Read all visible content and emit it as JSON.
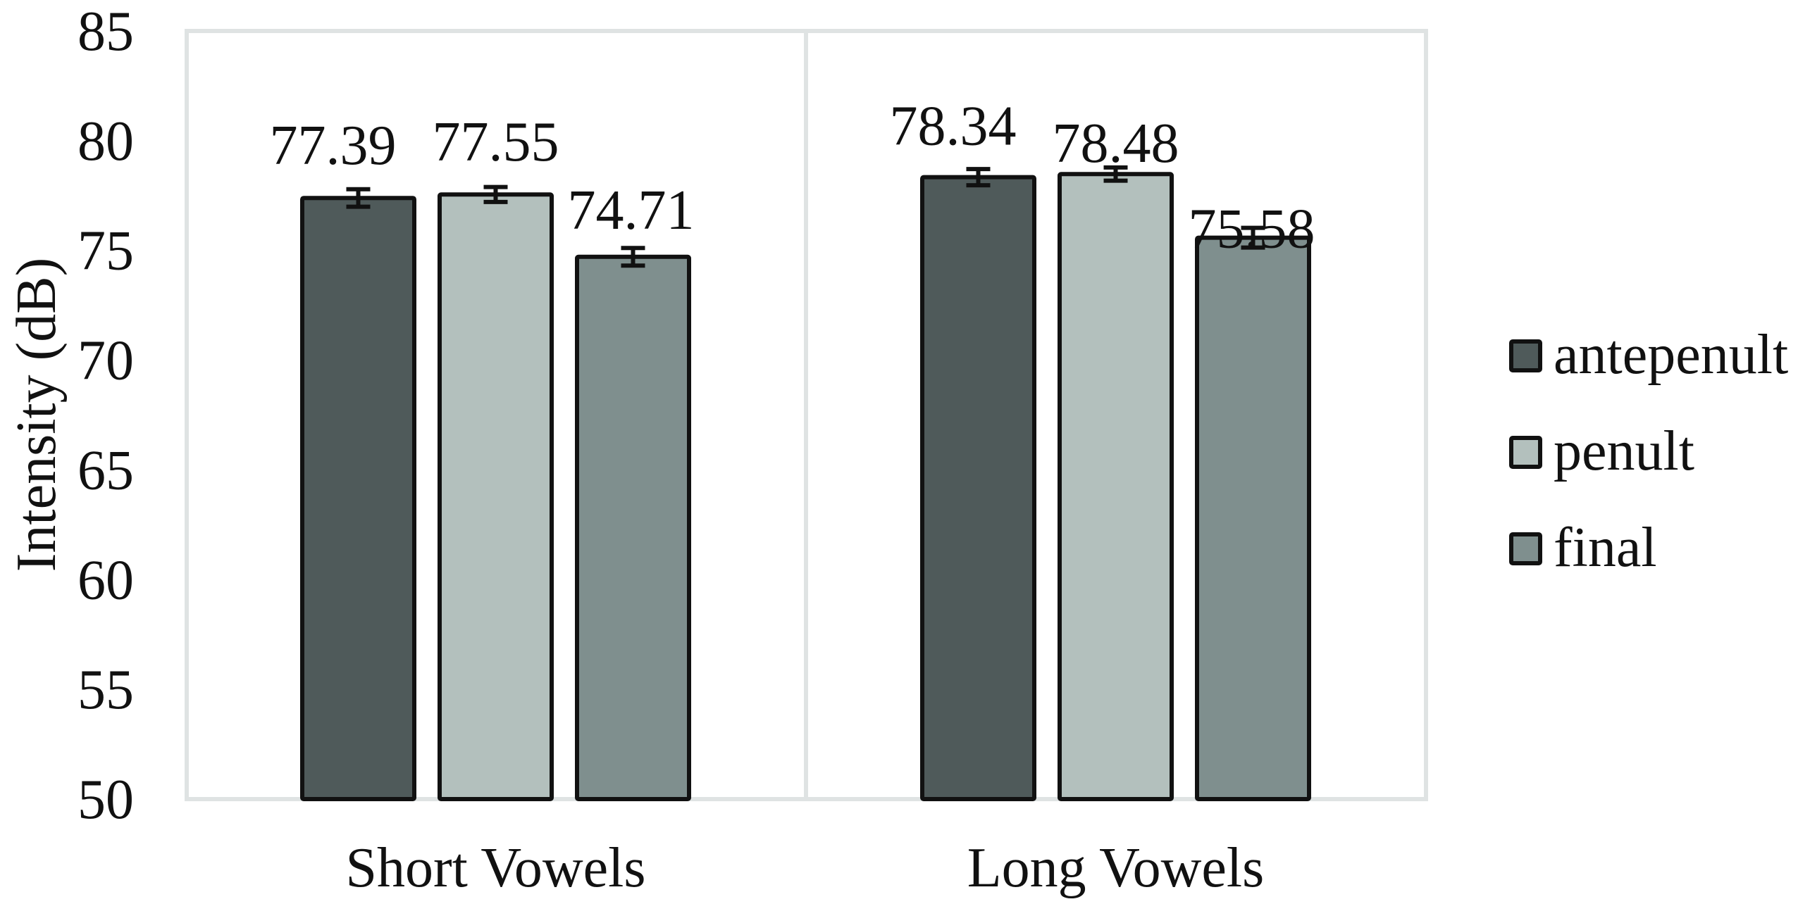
{
  "chart_data": {
    "type": "bar",
    "title": "",
    "xlabel": "",
    "ylabel": "Intensity (dB)",
    "ylim": [
      50,
      85
    ],
    "yticks": [
      50,
      55,
      60,
      65,
      70,
      75,
      80,
      85
    ],
    "grid": false,
    "legend_position": "right",
    "categories": [
      "Short Vowels",
      "Long Vowels"
    ],
    "series": [
      {
        "name": "antepenult",
        "color": "#4f5a5a",
        "values": [
          77.39,
          78.34
        ],
        "labels": [
          "77.39",
          "78.34"
        ],
        "error": [
          0.4,
          0.37
        ]
      },
      {
        "name": "penult",
        "color": "#b3c0bd",
        "values": [
          77.55,
          78.48
        ],
        "labels": [
          "77.55",
          "78.48"
        ],
        "error": [
          0.34,
          0.3
        ]
      },
      {
        "name": "final",
        "color": "#7f8f8e",
        "values": [
          74.71,
          75.58
        ],
        "labels": [
          "74.71",
          "75.58"
        ],
        "error": [
          0.4,
          0.45
        ]
      }
    ],
    "colors": {
      "frame": "#dfe3e3",
      "bar_outline": "#111111",
      "text": "#111111",
      "background": "#ffffff"
    }
  }
}
